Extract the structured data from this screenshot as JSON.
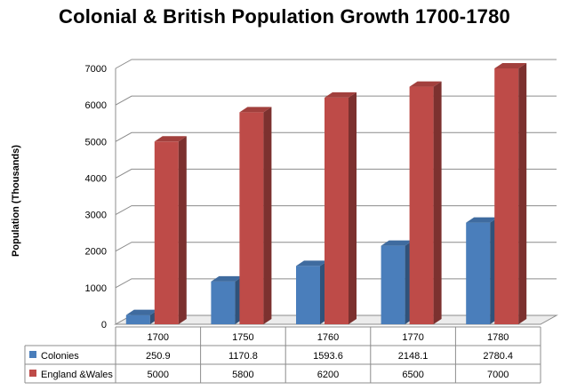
{
  "chart_data": {
    "type": "bar",
    "title": "Colonial & British Population Growth 1700-1780",
    "ylabel": "Population (Thousands)",
    "xlabel": "",
    "categories": [
      "1700",
      "1750",
      "1760",
      "1770",
      "1780"
    ],
    "series": [
      {
        "name": "Colonies",
        "values": [
          250.9,
          1170.8,
          1593.6,
          2148.1,
          2780.4
        ],
        "color": "#4a7ebb"
      },
      {
        "name": "England &Wales",
        "values": [
          5000,
          5800,
          6200,
          6500,
          7000
        ],
        "color": "#be4b48"
      }
    ],
    "ylim": [
      0,
      7000
    ],
    "yticks": [
      0,
      1000,
      2000,
      3000,
      4000,
      5000,
      6000,
      7000
    ],
    "grid": true,
    "legend": "data table",
    "style": "3d-clustered-column"
  }
}
